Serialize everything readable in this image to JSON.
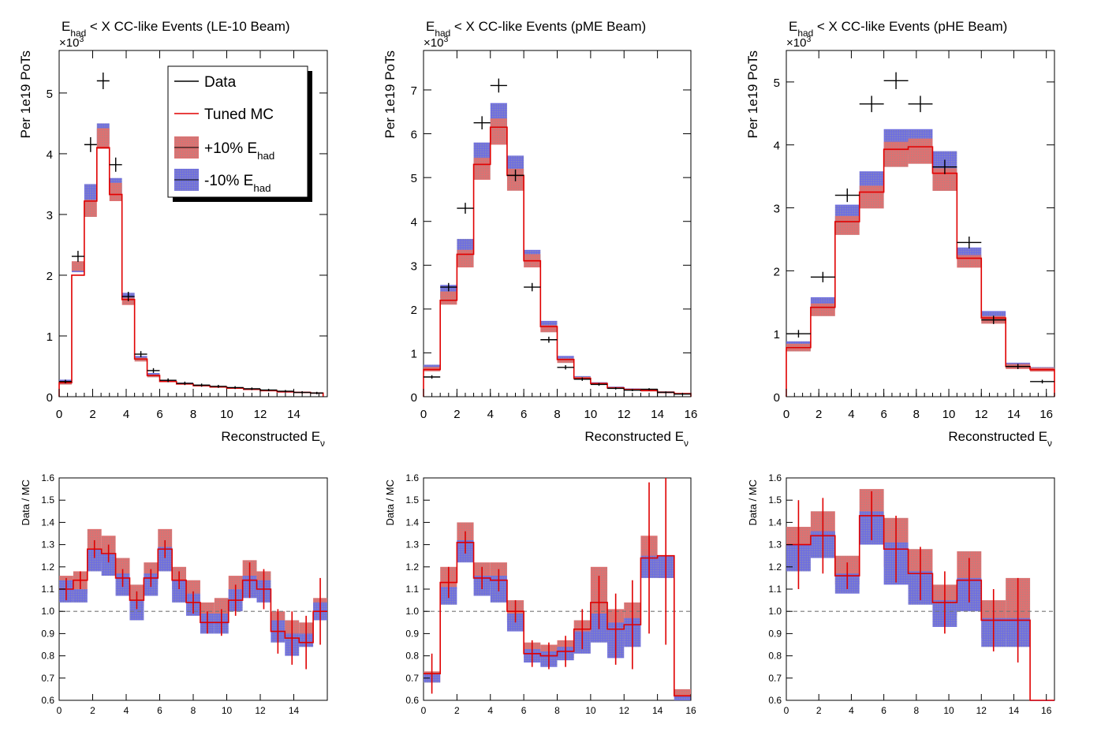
{
  "chart_data": [
    {
      "type": "step",
      "title_prefix": "E",
      "title_sub": "had",
      "title_suffix": " < X CC-like Events (LE-10 Beam)",
      "xlabel": "Reconstructed E",
      "xlabel_sub": "ν",
      "ylabel": "Per 1e19 PoTs",
      "multiplier": "×10",
      "multiplier_exp": "3",
      "xlim": [
        0,
        16
      ],
      "ylim": [
        0,
        5.7
      ],
      "xticks": [
        "0",
        "2",
        "4",
        "6",
        "8",
        "10",
        "12",
        "14"
      ],
      "yticks": [
        "0",
        "1",
        "2",
        "3",
        "4",
        "5"
      ],
      "bins": [
        0,
        0.75,
        1.5,
        2.25,
        3,
        3.75,
        4.5,
        5.25,
        6,
        7,
        8,
        9,
        10,
        11,
        12,
        13,
        14,
        15,
        15.75
      ],
      "mc": [
        0.23,
        2.0,
        3.22,
        4.1,
        3.33,
        1.6,
        0.62,
        0.35,
        0.25,
        0.21,
        0.18,
        0.16,
        0.14,
        0.12,
        0.1,
        0.08,
        0.07,
        0.06
      ],
      "plus": [
        0.23,
        2.15,
        3.1,
        4.25,
        3.37,
        1.57,
        0.61,
        0.34,
        0.25,
        0.21,
        0.18,
        0.16,
        0.14,
        0.12,
        0.1,
        0.08,
        0.07,
        0.06
      ],
      "minus": [
        0.25,
        2.13,
        3.36,
        4.33,
        3.45,
        1.65,
        0.64,
        0.37,
        0.26,
        0.22,
        0.18,
        0.16,
        0.14,
        0.12,
        0.1,
        0.08,
        0.07,
        0.06
      ],
      "band": [
        0.03,
        0.08,
        0.14,
        0.17,
        0.15,
        0.06,
        0.03,
        0.02,
        0.01,
        0.01,
        0.01,
        0.01,
        0.01,
        0.01,
        0.01,
        0.01,
        0.01,
        0.01
      ],
      "data": [
        {
          "x": 0.375,
          "y": 0.25,
          "ex": 0.375
        },
        {
          "x": 1.125,
          "y": 2.31,
          "ex": 0.375
        },
        {
          "x": 1.875,
          "y": 4.15,
          "ex": 0.375
        },
        {
          "x": 2.625,
          "y": 5.2,
          "ex": 0.375
        },
        {
          "x": 3.375,
          "y": 3.82,
          "ex": 0.375
        },
        {
          "x": 4.125,
          "y": 1.65,
          "ex": 0.375
        },
        {
          "x": 4.875,
          "y": 0.7,
          "ex": 0.375
        },
        {
          "x": 5.625,
          "y": 0.43,
          "ex": 0.375
        },
        {
          "x": 6.5,
          "y": 0.27,
          "ex": 0.5
        },
        {
          "x": 7.5,
          "y": 0.22,
          "ex": 0.5
        },
        {
          "x": 8.5,
          "y": 0.19,
          "ex": 0.5
        },
        {
          "x": 9.5,
          "y": 0.17,
          "ex": 0.5
        },
        {
          "x": 10.5,
          "y": 0.15,
          "ex": 0.5
        },
        {
          "x": 11.5,
          "y": 0.13,
          "ex": 0.5
        },
        {
          "x": 12.5,
          "y": 0.11,
          "ex": 0.5
        },
        {
          "x": 13.5,
          "y": 0.09,
          "ex": 0.5
        },
        {
          "x": 14.5,
          "y": 0.07,
          "ex": 0.5
        },
        {
          "x": 15.375,
          "y": 0.06,
          "ex": 0.375
        }
      ],
      "legend": {
        "entries": [
          {
            "label": "Data",
            "sub": ""
          },
          {
            "label": "Tuned MC",
            "sub": ""
          },
          {
            "label": "+10% E",
            "sub": "had"
          },
          {
            "label": "-10% E",
            "sub": "had"
          }
        ]
      },
      "ratio": {
        "ylabel": "Data / MC",
        "ylim": [
          0.6,
          1.6
        ],
        "xticks": [
          "0",
          "2",
          "4",
          "6",
          "8",
          "10",
          "12",
          "14"
        ],
        "yticks": [
          "0.6",
          "0.7",
          "0.8",
          "0.9",
          "1.0",
          "1.1",
          "1.2",
          "1.3",
          "1.4",
          "1.5",
          "1.6"
        ],
        "plus_low": [
          1.06,
          1.08,
          1.24,
          1.22,
          1.15,
          1.02,
          1.12,
          1.25,
          1.1,
          1.04,
          0.95,
          0.96,
          1.05,
          1.12,
          1.08,
          0.91,
          0.88,
          0.87,
          1.0
        ],
        "plus_high": [
          1.16,
          1.18,
          1.37,
          1.34,
          1.24,
          1.12,
          1.22,
          1.37,
          1.2,
          1.14,
          1.04,
          1.06,
          1.16,
          1.23,
          1.18,
          1.0,
          0.96,
          0.95,
          1.06
        ],
        "minus_low": [
          1.04,
          1.04,
          1.18,
          1.16,
          1.07,
          0.96,
          1.07,
          1.18,
          1.04,
          0.98,
          0.9,
          0.9,
          1.0,
          1.06,
          1.04,
          0.86,
          0.8,
          0.84,
          0.96
        ],
        "minus_high": [
          1.14,
          1.1,
          1.28,
          1.26,
          1.17,
          1.05,
          1.17,
          1.29,
          1.14,
          1.08,
          0.99,
          0.99,
          1.1,
          1.16,
          1.14,
          0.96,
          0.9,
          0.9,
          1.04
        ],
        "line": [
          1.1,
          1.14,
          1.28,
          1.26,
          1.15,
          1.05,
          1.15,
          1.28,
          1.14,
          1.04,
          0.95,
          0.95,
          1.05,
          1.14,
          1.1,
          0.91,
          0.88,
          0.86,
          1.0
        ],
        "err": [
          0.05,
          0.04,
          0.04,
          0.04,
          0.04,
          0.04,
          0.04,
          0.04,
          0.04,
          0.05,
          0.05,
          0.06,
          0.07,
          0.08,
          0.09,
          0.1,
          0.12,
          0.12,
          0.15
        ]
      }
    },
    {
      "type": "step",
      "title_prefix": "E",
      "title_sub": "had",
      "title_suffix": " < X CC-like Events (pME Beam)",
      "xlabel": "Reconstructed E",
      "xlabel_sub": "ν",
      "ylabel": "Per 1e19 PoTs",
      "multiplier": "×10",
      "multiplier_exp": "3",
      "xlim": [
        0,
        16
      ],
      "ylim": [
        0,
        7.9
      ],
      "xticks": [
        "0",
        "2",
        "4",
        "6",
        "8",
        "10",
        "12",
        "14",
        "16"
      ],
      "yticks": [
        "0",
        "1",
        "2",
        "3",
        "4",
        "5",
        "6",
        "7"
      ],
      "bins": [
        0,
        1,
        2,
        3,
        4,
        5,
        6,
        7,
        8,
        9,
        10,
        11,
        12,
        13,
        14,
        15,
        16
      ],
      "mc": [
        0.62,
        2.2,
        3.25,
        5.3,
        6.15,
        5.05,
        3.1,
        1.6,
        0.85,
        0.42,
        0.3,
        0.2,
        0.16,
        0.14,
        0.1,
        0.07
      ],
      "plus": [
        0.63,
        2.25,
        3.15,
        5.2,
        6.05,
        4.95,
        3.1,
        1.55,
        0.82,
        0.42,
        0.3,
        0.2,
        0.16,
        0.14,
        0.1,
        0.07
      ],
      "minus": [
        0.68,
        2.4,
        3.4,
        5.55,
        6.4,
        5.25,
        3.2,
        1.65,
        0.88,
        0.44,
        0.31,
        0.21,
        0.17,
        0.15,
        0.1,
        0.07
      ],
      "band": [
        0.05,
        0.15,
        0.2,
        0.25,
        0.3,
        0.25,
        0.15,
        0.08,
        0.05,
        0.03,
        0.02,
        0.02,
        0.02,
        0.02,
        0.02,
        0.01
      ],
      "data": [
        {
          "x": 0.5,
          "y": 0.45,
          "ex": 0.5
        },
        {
          "x": 1.5,
          "y": 2.5,
          "ex": 0.5
        },
        {
          "x": 2.5,
          "y": 4.3,
          "ex": 0.5
        },
        {
          "x": 3.5,
          "y": 6.25,
          "ex": 0.5
        },
        {
          "x": 4.5,
          "y": 7.1,
          "ex": 0.5
        },
        {
          "x": 5.5,
          "y": 5.05,
          "ex": 0.5
        },
        {
          "x": 6.5,
          "y": 2.5,
          "ex": 0.5
        },
        {
          "x": 7.5,
          "y": 1.3,
          "ex": 0.5
        },
        {
          "x": 8.5,
          "y": 0.67,
          "ex": 0.5
        },
        {
          "x": 9.5,
          "y": 0.4,
          "ex": 0.5
        },
        {
          "x": 10.5,
          "y": 0.28,
          "ex": 0.5
        },
        {
          "x": 11.5,
          "y": 0.19,
          "ex": 0.5
        },
        {
          "x": 12.5,
          "y": 0.15,
          "ex": 0.5
        },
        {
          "x": 13.5,
          "y": 0.17,
          "ex": 0.5
        },
        {
          "x": 14.5,
          "y": 0.1,
          "ex": 0.5
        },
        {
          "x": 15.5,
          "y": 0.06,
          "ex": 0.5
        }
      ],
      "ratio": {
        "ylabel": "Data / MC",
        "ylim": [
          0.6,
          1.6
        ],
        "xticks": [
          "0",
          "2",
          "4",
          "6",
          "8",
          "10",
          "12",
          "14",
          "16"
        ],
        "yticks": [
          "0.6",
          "0.7",
          "0.8",
          "0.9",
          "1.0",
          "1.1",
          "1.2",
          "1.3",
          "1.4",
          "1.5",
          "1.6"
        ],
        "plus_low": [
          0.68,
          1.1,
          1.27,
          1.12,
          1.1,
          0.95,
          0.79,
          0.77,
          0.79,
          0.87,
          0.93,
          0.85,
          0.88,
          1.2,
          1.15,
          0.6
        ],
        "plus_high": [
          0.73,
          1.2,
          1.4,
          1.22,
          1.22,
          1.05,
          0.86,
          0.85,
          0.87,
          0.96,
          1.2,
          1.01,
          1.04,
          1.34,
          1.25,
          0.65
        ],
        "minus_low": [
          0.68,
          1.03,
          1.22,
          1.07,
          1.04,
          0.91,
          0.77,
          0.75,
          0.78,
          0.81,
          0.86,
          0.79,
          0.84,
          1.15,
          1.15,
          0.6
        ],
        "minus_high": [
          0.72,
          1.11,
          1.32,
          1.16,
          1.16,
          0.99,
          0.83,
          0.82,
          0.84,
          0.91,
          0.99,
          0.95,
          0.97,
          1.25,
          1.25,
          0.62
        ],
        "line": [
          0.72,
          1.13,
          1.31,
          1.15,
          1.14,
          1.0,
          0.81,
          0.8,
          0.82,
          0.92,
          1.04,
          0.92,
          0.94,
          1.24,
          1.25,
          0.62
        ],
        "err": [
          0.09,
          0.07,
          0.05,
          0.05,
          0.05,
          0.05,
          0.06,
          0.06,
          0.07,
          0.09,
          0.12,
          0.16,
          0.2,
          0.34,
          0.4,
          0.0
        ]
      }
    },
    {
      "type": "step",
      "title_prefix": "E",
      "title_sub": "had",
      "title_suffix": " < X CC-like Events (pHE Beam)",
      "xlabel": "Reconstructed E",
      "xlabel_sub": "ν",
      "ylabel": "Per 1e19 PoTs",
      "multiplier": "×10",
      "multiplier_exp": "3",
      "xlim": [
        0,
        16.5
      ],
      "ylim": [
        0,
        5.5
      ],
      "xticks": [
        "0",
        "2",
        "4",
        "6",
        "8",
        "10",
        "12",
        "14",
        "16"
      ],
      "yticks": [
        "0",
        "1",
        "2",
        "3",
        "4",
        "5"
      ],
      "bins": [
        0,
        1.5,
        3,
        4.5,
        6,
        7.5,
        9,
        10.5,
        12,
        13.5,
        15,
        16.5
      ],
      "mc": [
        0.78,
        1.42,
        2.78,
        3.25,
        3.93,
        3.97,
        3.55,
        2.2,
        1.25,
        0.48,
        0.43
      ],
      "plus": [
        0.78,
        1.38,
        2.72,
        3.17,
        3.85,
        3.9,
        3.45,
        2.15,
        1.22,
        0.48,
        0.43
      ],
      "minus": [
        0.82,
        1.48,
        2.9,
        3.4,
        4.05,
        4.05,
        3.72,
        2.27,
        1.3,
        0.5,
        0.44
      ],
      "band": [
        0.06,
        0.1,
        0.15,
        0.18,
        0.2,
        0.2,
        0.18,
        0.1,
        0.06,
        0.04,
        0.03
      ],
      "data": [
        {
          "x": 0.75,
          "y": 1.0,
          "ex": 0.75
        },
        {
          "x": 2.25,
          "y": 1.9,
          "ex": 0.75
        },
        {
          "x": 3.75,
          "y": 3.2,
          "ex": 0.75
        },
        {
          "x": 5.25,
          "y": 4.65,
          "ex": 0.75
        },
        {
          "x": 6.75,
          "y": 5.02,
          "ex": 0.75
        },
        {
          "x": 8.25,
          "y": 4.65,
          "ex": 0.75
        },
        {
          "x": 9.75,
          "y": 3.65,
          "ex": 0.75
        },
        {
          "x": 11.25,
          "y": 2.45,
          "ex": 0.75
        },
        {
          "x": 12.75,
          "y": 1.22,
          "ex": 0.75
        },
        {
          "x": 14.25,
          "y": 0.48,
          "ex": 0.75
        },
        {
          "x": 15.75,
          "y": 0.24,
          "ex": 0.75
        }
      ],
      "ratio": {
        "ylabel": "Data / MC",
        "ylim": [
          0.6,
          1.6
        ],
        "xticks": [
          "0",
          "2",
          "4",
          "6",
          "8",
          "10",
          "12",
          "14",
          "16"
        ],
        "yticks": [
          "0.6",
          "0.7",
          "0.8",
          "0.9",
          "1.0",
          "1.1",
          "1.2",
          "1.3",
          "1.4",
          "1.5",
          "1.6"
        ],
        "plus_low": [
          1.25,
          1.3,
          1.12,
          1.35,
          1.2,
          1.1,
          0.98,
          1.05,
          0.88,
          0.88,
          0.6
        ],
        "plus_high": [
          1.38,
          1.45,
          1.25,
          1.55,
          1.42,
          1.28,
          1.12,
          1.27,
          1.05,
          1.15,
          0.6
        ],
        "minus_low": [
          1.18,
          1.24,
          1.08,
          1.3,
          1.12,
          1.03,
          0.93,
          1.0,
          0.84,
          0.84,
          0.6
        ],
        "minus_high": [
          1.3,
          1.36,
          1.17,
          1.45,
          1.31,
          1.18,
          1.05,
          1.15,
          0.97,
          0.97,
          0.6
        ],
        "line": [
          1.3,
          1.34,
          1.16,
          1.43,
          1.28,
          1.17,
          1.04,
          1.14,
          0.96,
          0.96,
          0.6
        ],
        "err": [
          0.2,
          0.17,
          0.06,
          0.11,
          0.15,
          0.12,
          0.14,
          0.1,
          0.14,
          0.19,
          0.0
        ]
      }
    }
  ]
}
